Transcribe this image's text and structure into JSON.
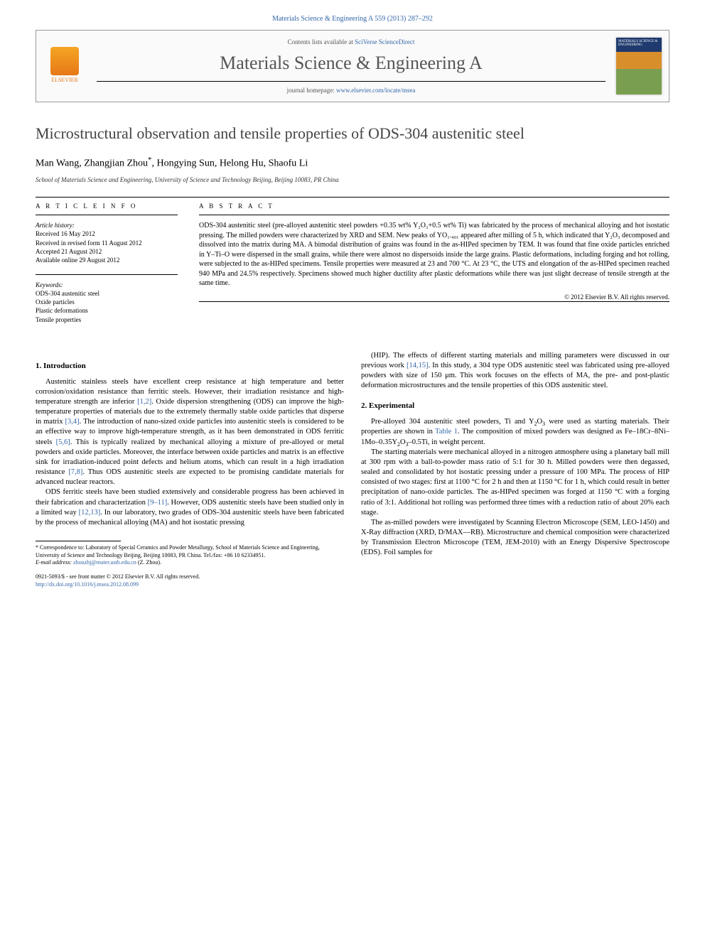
{
  "journal_ref": "Materials Science & Engineering A 559 (2013) 287–292",
  "header": {
    "contents_prefix": "Contents lists available at ",
    "contents_link": "SciVerse ScienceDirect",
    "journal_name": "Materials Science & Engineering A",
    "homepage_prefix": "journal homepage: ",
    "homepage_link": "www.elsevier.com/locate/msea",
    "publisher": "ELSEVIER"
  },
  "title": "Microstructural observation and tensile properties of ODS-304 austenitic steel",
  "authors": "Man Wang, Zhangjian Zhou",
  "corr_mark": "*",
  "authors_rest": ", Hongying Sun, Helong Hu, Shaofu Li",
  "affiliation": "School of Materials Science and Engineering, University of Science and Technology Beijing, Beijing 10083, PR China",
  "article_info_label": "a r t i c l e   i n f o",
  "abstract_label": "a b s t r a c t",
  "history": {
    "label": "Article history:",
    "received": "Received 16 May 2012",
    "revised": "Received in revised form 11 August 2012",
    "accepted": "Accepted 21 August 2012",
    "online": "Available online 29 August 2012"
  },
  "keywords": {
    "label": "Keywords:",
    "items": [
      "ODS-304 austenitic steel",
      "Oxide particles",
      "Plastic deformations",
      "Tensile properties"
    ]
  },
  "abstract_text": "ODS-304 austenitic steel (pre-alloyed austenitic steel powders +0.35 wt% Y₂O₃+0.5 wt% Ti) was fabricated by the process of mechanical alloying and hot isostatic pressing. The milled powders were characterized by XRD and SEM. New peaks of YO₁.₄₀₁ appeared after milling of 5 h, which indicated that Y₂O₃ decomposed and dissolved into the matrix during MA. A bimodal distribution of grains was found in the as-HIPed specimen by TEM. It was found that fine oxide particles enriched in Y–Ti–O were dispersed in the small grains, while there were almost no dispersoids inside the large grains. Plastic deformations, including forging and hot rolling, were subjected to the as-HIPed specimens. Tensile properties were measured at 23 and 700 °C. At 23 °C, the UTS and elongation of the as-HIPed specimen reached 940 MPa and 24.5% respectively. Specimens showed much higher ductility after plastic deformations while there was just slight decrease of tensile strength at the same time.",
  "abstract_copyright": "© 2012 Elsevier B.V. All rights reserved.",
  "sections": {
    "intro_heading": "1.  Introduction",
    "intro_p1": "Austenitic stainless steels have excellent creep resistance at high temperature and better corrosion/oxidation resistance than ferritic steels. However, their irradiation resistance and high-temperature strength are inferior [1,2]. Oxide dispersion strengthening (ODS) can improve the high-temperature properties of materials due to the extremely thermally stable oxide particles that disperse in matrix [3,4]. The introduction of nano-sized oxide particles into austenitic steels is considered to be an effective way to improve high-temperature strength, as it has been demonstrated in ODS ferritic steels [5,6]. This is typically realized by mechanical alloying a mixture of pre-alloyed or metal powders and oxide particles. Moreover, the interface between oxide particles and matrix is an effective sink for irradiation-induced point defects and helium atoms, which can result in a high irradiation resistance [7,8]. Thus ODS austenitic steels are expected to be promising candidate materials for advanced nuclear reactors.",
    "intro_p2": "ODS ferritic steels have been studied extensively and considerable progress has been achieved in their fabrication and characterization [9–11]. However, ODS austenitic steels have been studied only in a limited way [12,13]. In our laboratory, two grades of ODS-304 austenitic steels have been fabricated by the process of mechanical alloying (MA) and hot isostatic pressing",
    "intro_p3": "(HIP). The effects of different starting materials and milling parameters were discussed in our previous work [14,15]. In this study, a 304 type ODS austenitic steel was fabricated using pre-alloyed powders with size of 150 μm. This work focuses on the effects of MA, the pre- and post-plastic deformation microstructures and the tensile properties of this ODS austenitic steel.",
    "exp_heading": "2.  Experimental",
    "exp_p1": "Pre-alloyed 304 austenitic steel powders, Ti and Y₂O₃ were used as starting materials. Their properties are shown in Table 1. The composition of mixed powders was designed as Fe–18Cr–8Ni–1Mo–0.35Y₂O₃–0.5Ti, in weight percent.",
    "exp_p2": "The starting materials were mechanical alloyed in a nitrogen atmosphere using a planetary ball mill at 300 rpm with a ball-to-powder mass ratio of 5:1 for 30 h. Milled powders were then degassed, sealed and consolidated by hot isostatic pressing under a pressure of 100 MPa. The process of HIP consisted of two stages: first at 1100 °C for 2 h and then at 1150 °C for 1 h, which could result in better precipitation of nano-oxide particles. The as-HIPed specimen was forged at 1150 °C with a forging ratio of 3:1. Additional hot rolling was performed three times with a reduction ratio of about 20% each stage.",
    "exp_p3": "The as-milled powders were investigated by Scanning Electron Microscope (SEM, LEO-1450) and X-Ray diffraction (XRD, D/MAX—RB). Microstructure and chemical composition were characterized by Transmission Electron Microscope (TEM, JEM-2010) with an Energy Dispersive Spectroscope (EDS). Foil samples for"
  },
  "footnote": {
    "corr_label": "* Correspondence to: ",
    "corr_text": "Laboratory of Special Ceramics and Powder Metallurgy, School of Materials Science and Engineering, University of Science and Technology Beijing, Beijing 10083, PR China. Tel./fax: +86 10 62334951.",
    "email_label": "E-mail address: ",
    "email": "zhouzhj@mater.ustb.edu.cn",
    "email_suffix": " (Z. Zhou)."
  },
  "doi": {
    "line1": "0921-5093/$ - see front matter © 2012 Elsevier B.V. All rights reserved.",
    "line2_label": "http://dx.doi.org/",
    "line2_link": "10.1016/j.msea.2012.08.099"
  },
  "refs": {
    "r12": "[1,2]",
    "r34": "[3,4]",
    "r56": "[5,6]",
    "r78": "[7,8]",
    "r911": "[9–11]",
    "r1213": "[12,13]",
    "r1415": "[14,15]",
    "t1": "Table 1"
  },
  "colors": {
    "link": "#3366a8",
    "text": "#000000",
    "title": "#444444",
    "elsevier": "#e67817"
  }
}
